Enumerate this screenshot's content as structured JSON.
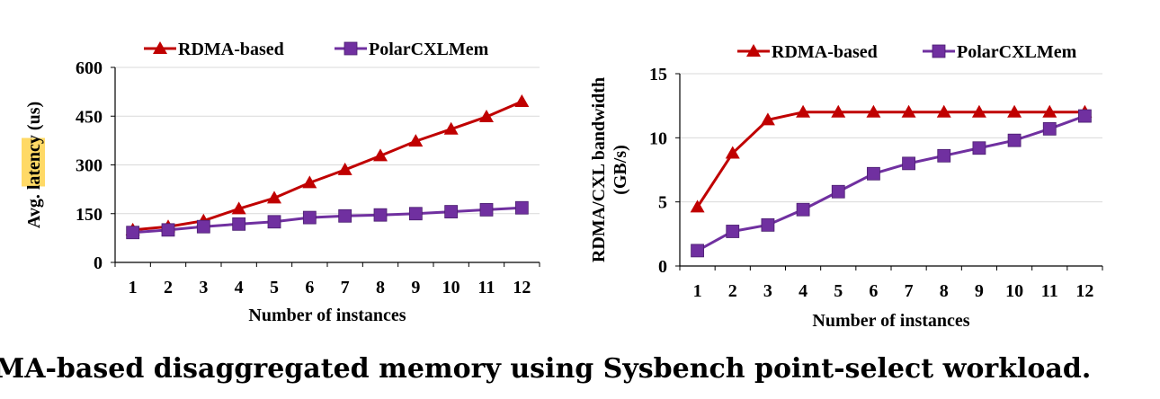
{
  "caption": "MA-based disaggregated memory using Sysbench point-select workload.",
  "highlight_color": "#ffd966",
  "chart_data": [
    {
      "type": "line",
      "xlabel": "Number of instances",
      "ylabel_prefix": "Avg.",
      "ylabel_highlight": "latency",
      "ylabel_suffix": "(us)",
      "categories": [
        "1",
        "2",
        "3",
        "4",
        "5",
        "6",
        "7",
        "8",
        "9",
        "10",
        "11",
        "12"
      ],
      "x": [
        1,
        2,
        3,
        4,
        5,
        6,
        7,
        8,
        9,
        10,
        11,
        12
      ],
      "ylim": [
        0,
        600
      ],
      "yticks": [
        0,
        150,
        300,
        450,
        600
      ],
      "grid": true,
      "legend": "top",
      "series": [
        {
          "name": "RDMA-based",
          "color": "#c00000",
          "marker": "triangle",
          "values": [
            100,
            110,
            128,
            165,
            198,
            245,
            285,
            328,
            373,
            410,
            448,
            495
          ]
        },
        {
          "name": "PolarCXLMem",
          "color": "#7030a0",
          "marker": "square",
          "values": [
            92,
            100,
            110,
            118,
            125,
            138,
            143,
            146,
            150,
            156,
            162,
            168
          ]
        }
      ]
    },
    {
      "type": "line",
      "xlabel": "Number of instances",
      "ylabel_line1": "RDMA/CXL bandwidth",
      "ylabel_line2": "(GB/s)",
      "categories": [
        "1",
        "2",
        "3",
        "4",
        "5",
        "6",
        "7",
        "8",
        "9",
        "10",
        "11",
        "12"
      ],
      "x": [
        1,
        2,
        3,
        4,
        5,
        6,
        7,
        8,
        9,
        10,
        11,
        12
      ],
      "ylim": [
        0,
        15
      ],
      "yticks": [
        0,
        5,
        10,
        15
      ],
      "grid": true,
      "legend": "top",
      "series": [
        {
          "name": "RDMA-based",
          "color": "#c00000",
          "marker": "triangle",
          "values": [
            4.6,
            8.8,
            11.4,
            12.0,
            12.0,
            12.0,
            12.0,
            12.0,
            12.0,
            12.0,
            12.0,
            12.0
          ]
        },
        {
          "name": "PolarCXLMem",
          "color": "#7030a0",
          "marker": "square",
          "values": [
            1.2,
            2.7,
            3.2,
            4.4,
            5.8,
            7.2,
            8.0,
            8.6,
            9.2,
            9.8,
            10.7,
            11.7
          ]
        }
      ]
    }
  ]
}
